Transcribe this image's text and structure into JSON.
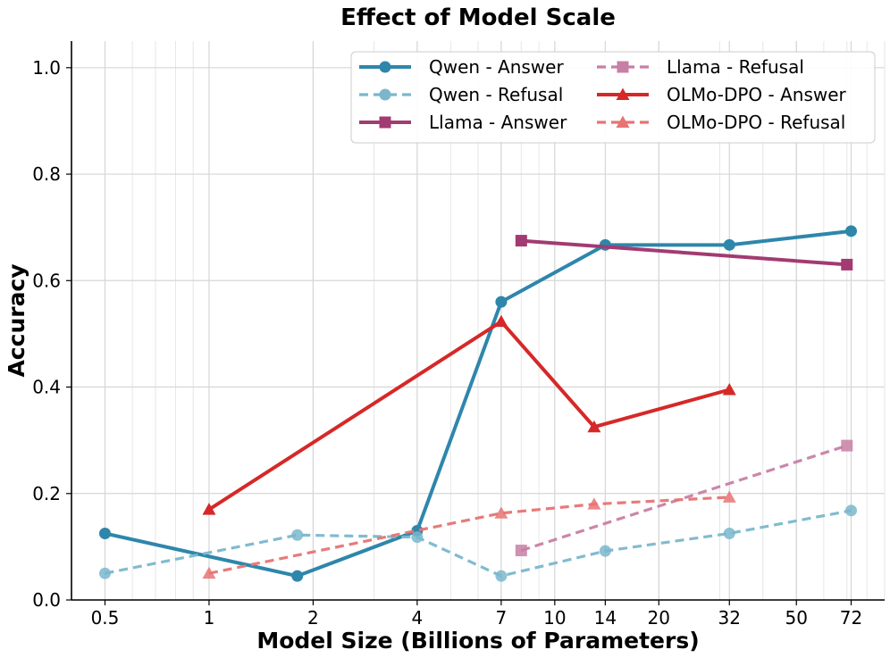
{
  "chart_data": {
    "type": "line",
    "title": "Effect of Model Scale",
    "xlabel": "Model Size (Billions of Parameters)",
    "ylabel": "Accuracy",
    "xscale": "log",
    "xlim": [
      0.4,
      90
    ],
    "ylim": [
      0,
      1.05
    ],
    "xticks": [
      0.5,
      1,
      2,
      4,
      7,
      10,
      14,
      20,
      32,
      50,
      72
    ],
    "xtick_labels": [
      "0.5",
      "1",
      "2",
      "4",
      "7",
      "10",
      "14",
      "20",
      "32",
      "50",
      "72"
    ],
    "yticks": [
      0.0,
      0.2,
      0.4,
      0.6,
      0.8,
      1.0
    ],
    "ytick_labels": [
      "0.0",
      "0.2",
      "0.4",
      "0.6",
      "0.8",
      "1.0"
    ],
    "grid": true,
    "legend_position": "top-right",
    "series": [
      {
        "name": "Qwen - Answer",
        "color": "#2e86ab",
        "style": "solid",
        "marker": "circle",
        "alpha": 1,
        "x": [
          0.5,
          1.8,
          4,
          7,
          14,
          32,
          72
        ],
        "y": [
          0.125,
          0.045,
          0.13,
          0.56,
          0.667,
          0.667,
          0.693
        ]
      },
      {
        "name": "Qwen - Refusal",
        "color": "#7ab7cc",
        "style": "dashed",
        "marker": "circle",
        "alpha": 1,
        "x": [
          0.5,
          1.8,
          4,
          7,
          14,
          32,
          72
        ],
        "y": [
          0.05,
          0.122,
          0.118,
          0.045,
          0.092,
          0.125,
          0.168
        ]
      },
      {
        "name": "Llama - Answer",
        "color": "#a23b72",
        "style": "solid",
        "marker": "square",
        "alpha": 1,
        "x": [
          8,
          70
        ],
        "y": [
          0.675,
          0.63
        ]
      },
      {
        "name": "Llama - Refusal",
        "color": "#c87fa5",
        "style": "dashed",
        "marker": "square",
        "alpha": 1,
        "x": [
          8,
          70
        ],
        "y": [
          0.093,
          0.29
        ]
      },
      {
        "name": "OLMo-DPO - Answer",
        "color": "#d62828",
        "style": "solid",
        "marker": "triangle",
        "alpha": 1,
        "x": [
          1,
          7,
          13,
          32
        ],
        "y": [
          0.17,
          0.523,
          0.325,
          0.395
        ]
      },
      {
        "name": "OLMo-DPO - Refusal",
        "color": "#e77373",
        "style": "dashed",
        "marker": "triangle",
        "alpha": 1,
        "x": [
          1,
          7,
          13,
          32
        ],
        "y": [
          0.05,
          0.163,
          0.18,
          0.193
        ]
      }
    ]
  }
}
